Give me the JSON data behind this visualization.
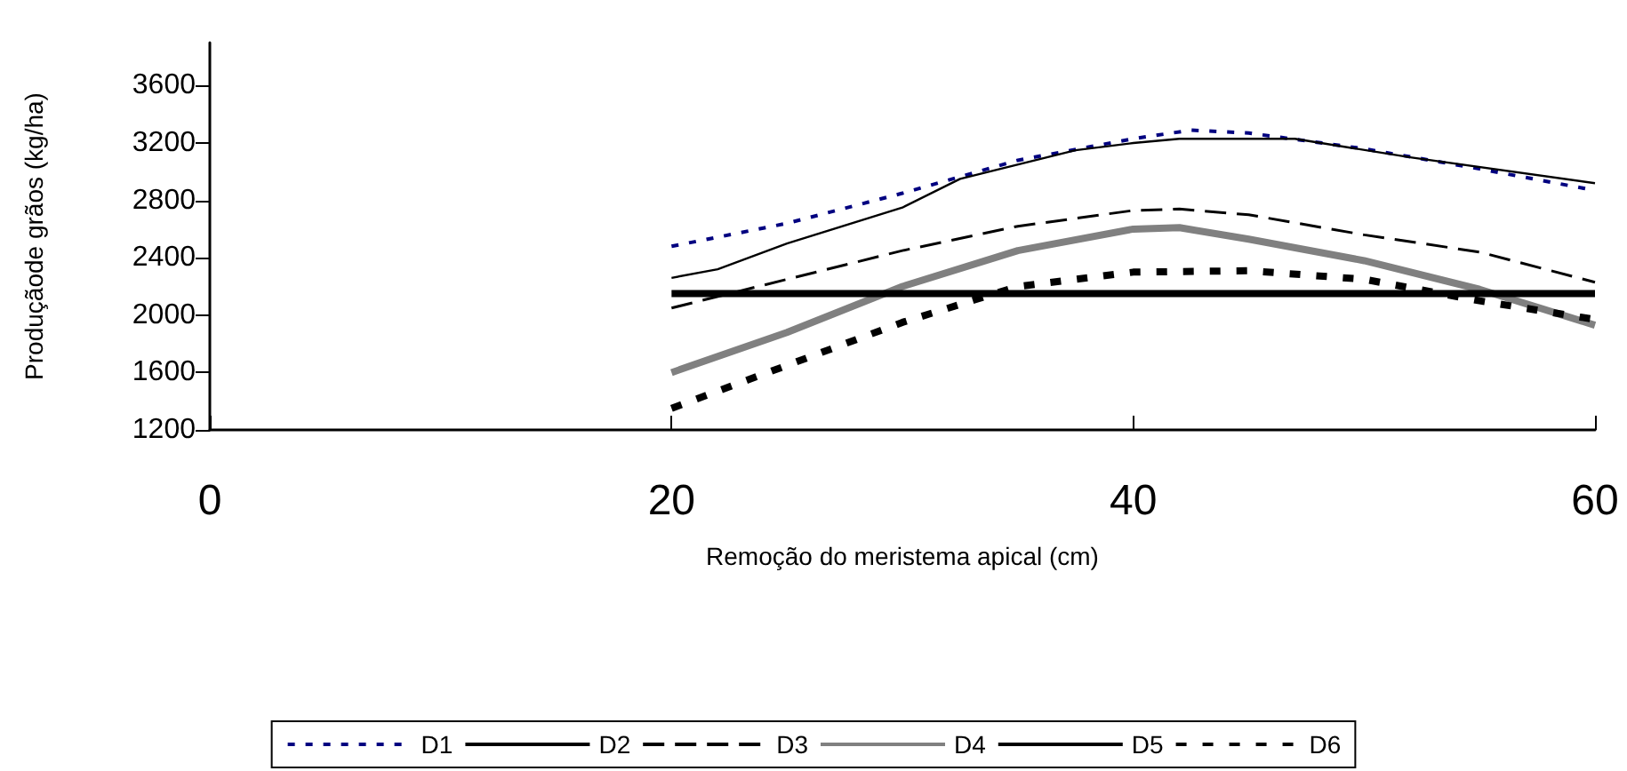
{
  "chart_data": {
    "type": "line",
    "xlabel": "Remoção do meristema apical (cm)",
    "ylabel": "Produçãode grãos (kg/ha)",
    "xlim": [
      0,
      60
    ],
    "xticks": [
      0,
      20,
      40,
      60
    ],
    "ylim": [
      1200,
      3900
    ],
    "yticks": [
      1200,
      1600,
      2000,
      2400,
      2800,
      3200,
      3600
    ],
    "grid": false,
    "legend": "bottom",
    "marker": "none",
    "series": [
      {
        "name": "D1",
        "color": "#000080",
        "line_style": "dotted",
        "x": [
          20,
          25,
          30,
          35,
          40,
          42.5,
          45,
          50,
          55,
          60
        ],
        "values": [
          2480,
          2640,
          2850,
          3080,
          3230,
          3290,
          3270,
          3160,
          3020,
          2870
        ]
      },
      {
        "name": "D2",
        "color": "#000000",
        "line_style": "solid",
        "x": [
          20,
          22,
          25,
          30,
          32.5,
          37.5,
          40,
          42,
          47,
          52,
          60
        ],
        "values": [
          2260,
          2320,
          2500,
          2750,
          2950,
          3150,
          3200,
          3230,
          3230,
          3100,
          2920
        ]
      },
      {
        "name": "D3",
        "color": "#000000",
        "line_style": "dashed",
        "x": [
          20,
          25,
          30,
          35,
          40,
          42,
          45,
          50,
          55,
          60
        ],
        "values": [
          2050,
          2250,
          2450,
          2620,
          2730,
          2740,
          2700,
          2560,
          2440,
          2230
        ]
      },
      {
        "name": "D4",
        "color": "#808080",
        "line_style": "solid",
        "x": [
          20,
          25,
          30,
          35,
          40,
          42,
          45,
          50,
          55,
          60
        ],
        "values": [
          1600,
          1880,
          2200,
          2450,
          2600,
          2610,
          2530,
          2380,
          2180,
          1930
        ]
      },
      {
        "name": "D5",
        "color": "#000000",
        "line_style": "solid",
        "x": [
          20,
          60
        ],
        "values": [
          2150,
          2150
        ]
      },
      {
        "name": "D6",
        "color": "#000000",
        "line_style": "dashed",
        "x": [
          20,
          25,
          30,
          35,
          40,
          45,
          50,
          55,
          60
        ],
        "values": [
          1350,
          1650,
          1950,
          2200,
          2300,
          2310,
          2250,
          2100,
          1970
        ]
      }
    ]
  }
}
